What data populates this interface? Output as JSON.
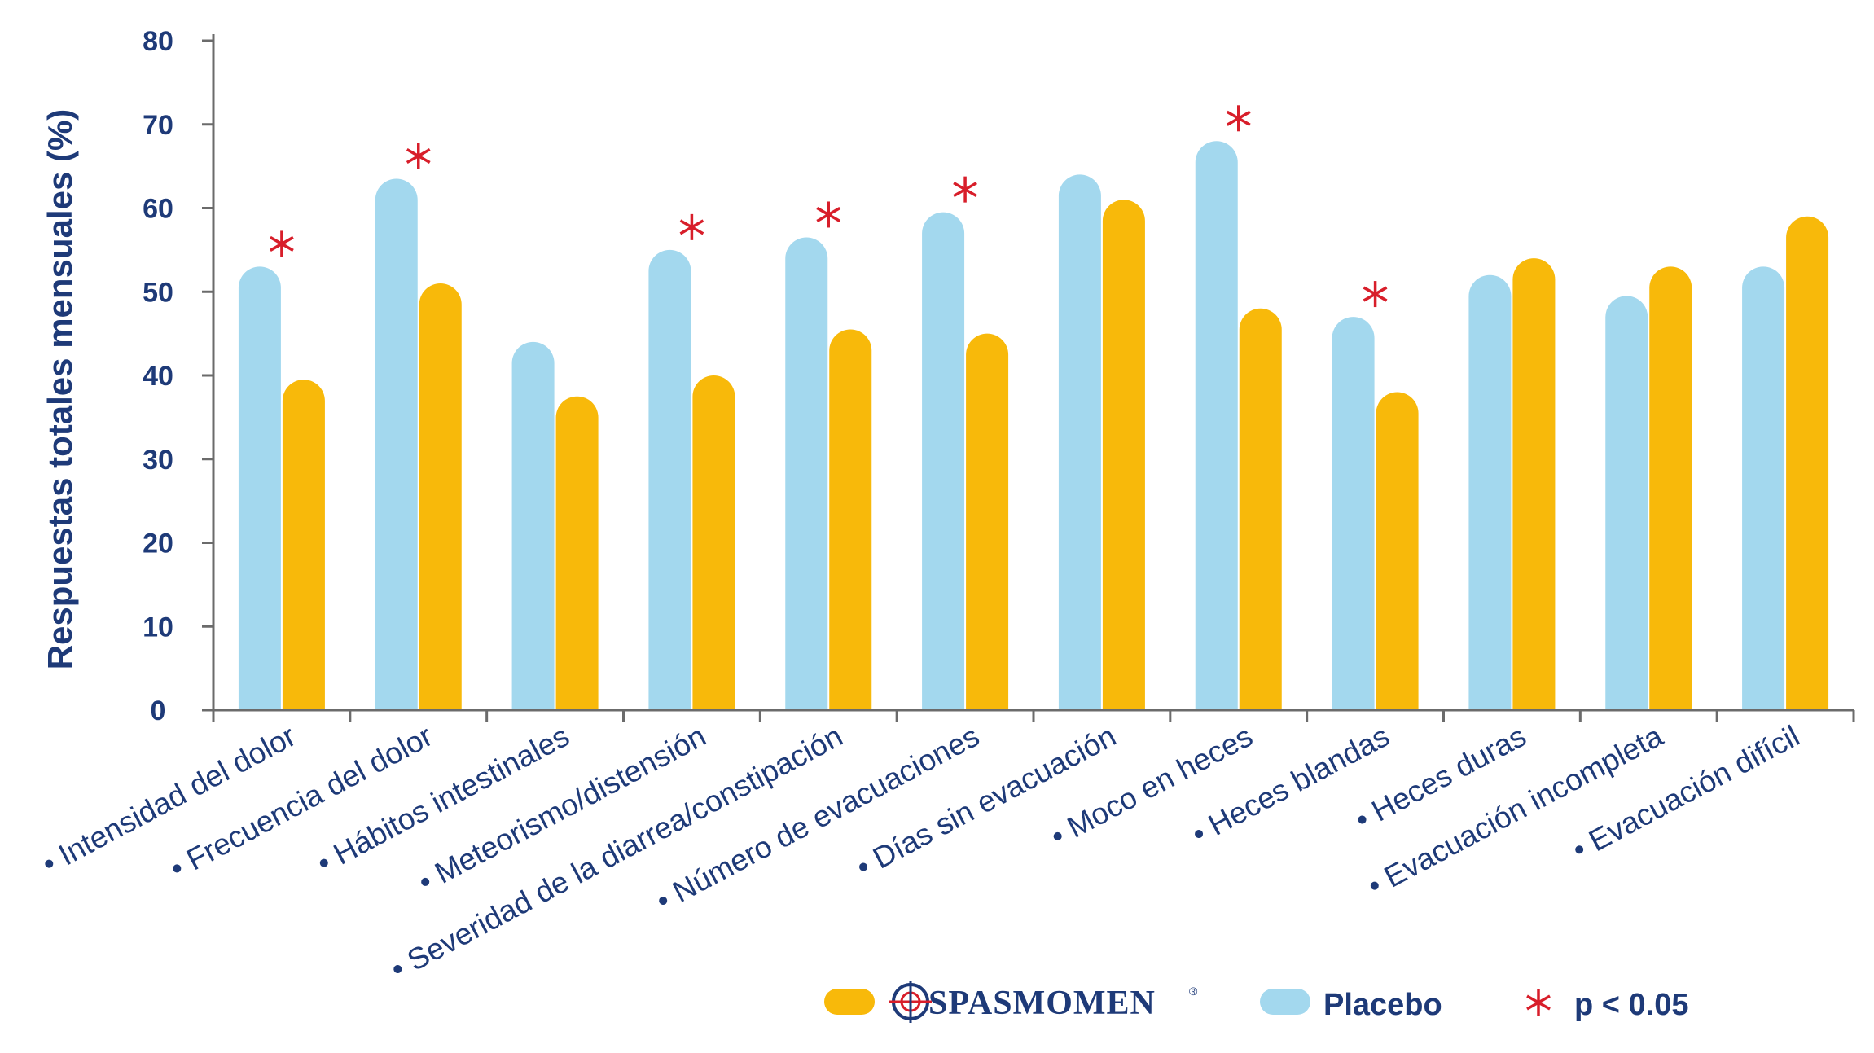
{
  "chart_data": {
    "type": "bar",
    "ylabel": "Respuestas totales mensuales (%)",
    "ylim": [
      0,
      80
    ],
    "yticks": [
      0,
      10,
      20,
      30,
      40,
      50,
      60,
      70,
      80
    ],
    "grid": false,
    "legend_position": "bottom",
    "categories": [
      "• Intensidad del dolor",
      "• Frecuencia  del dolor",
      "• Hábitos intestinales",
      "• Meteorismo/distensión",
      "• Severidad de la diarrea/constipación",
      "• Número de evacuaciones",
      "• Días sin evacuación",
      "• Moco en heces",
      "• Heces blandas",
      "• Heces duras",
      "• Evacuación incompleta",
      "• Evacuación difícil"
    ],
    "series": [
      {
        "name": "Placebo",
        "color": "#a3d8ee",
        "values": [
          53,
          63.5,
          44,
          55,
          56.5,
          59.5,
          64,
          68,
          47,
          52,
          49.5,
          53
        ]
      },
      {
        "name": "SPASMOMEN",
        "color": "#f8b90a",
        "values": [
          39.5,
          51,
          37.5,
          40,
          45.5,
          45,
          61,
          48,
          38,
          54,
          53,
          59
        ]
      }
    ],
    "significant_marker": "*",
    "significant_color": "#d81e2a",
    "significant": [
      true,
      true,
      false,
      true,
      true,
      true,
      false,
      true,
      true,
      false,
      false,
      false
    ]
  },
  "legend": {
    "spasmomen_label": "SPASMOMEN",
    "spasmomen_mark": "®",
    "placebo_label": "Placebo",
    "significance_symbol": "*",
    "significance_label": "p < 0.05"
  }
}
